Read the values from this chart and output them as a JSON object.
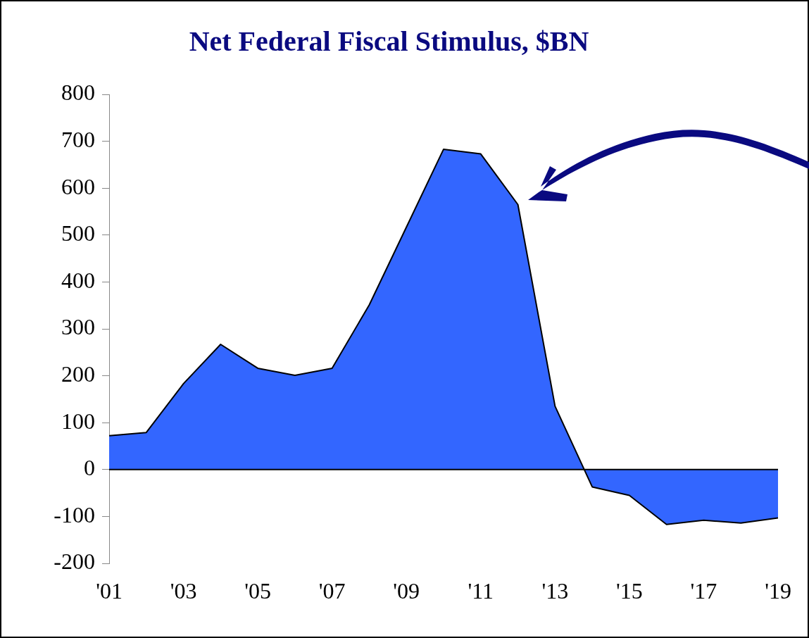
{
  "chart_data": {
    "type": "area",
    "title": "Net Federal Fiscal Stimulus, $BN",
    "x": [
      2001,
      2002,
      2003,
      2004,
      2005,
      2006,
      2007,
      2008,
      2009,
      2010,
      2011,
      2012,
      2013,
      2014,
      2015,
      2016,
      2017,
      2018,
      2019
    ],
    "series": [
      {
        "color": "#3366ff",
        "values": [
          72,
          79,
          183,
          267,
          216,
          201,
          216,
          351,
          517,
          683,
          673,
          565,
          135,
          -37,
          -55,
          -117,
          -108,
          -114,
          -103
        ]
      }
    ],
    "xlim": [
      2001,
      2019
    ],
    "xticks": [
      {
        "value": 2001,
        "label": "'01"
      },
      {
        "value": 2003,
        "label": "'03"
      },
      {
        "value": 2005,
        "label": "'05"
      },
      {
        "value": 2007,
        "label": "'07"
      },
      {
        "value": 2009,
        "label": "'09"
      },
      {
        "value": 2011,
        "label": "'11"
      },
      {
        "value": 2013,
        "label": "'13"
      },
      {
        "value": 2015,
        "label": "'15"
      },
      {
        "value": 2017,
        "label": "'17"
      },
      {
        "value": 2019,
        "label": "'19"
      }
    ],
    "ylim": [
      -200,
      800
    ],
    "yticks": [
      -200,
      -100,
      0,
      100,
      200,
      300,
      400,
      500,
      600,
      700,
      800
    ],
    "ref_lines": [
      {
        "axis": "y",
        "value": 0,
        "color": "#000000"
      }
    ],
    "grid": false,
    "legend": false
  }
}
